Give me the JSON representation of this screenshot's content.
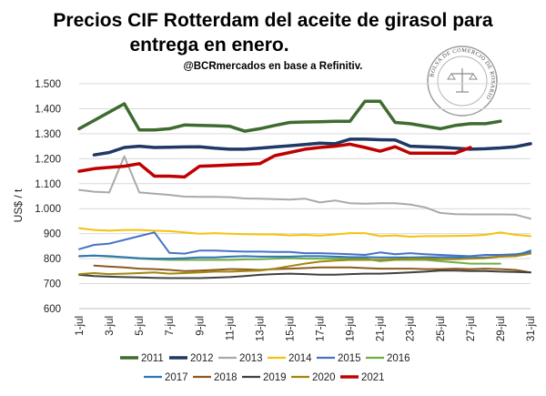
{
  "chart_data": {
    "type": "line",
    "title_line1": "Precios CIF Rotterdam del aceite de girasol para",
    "title_line2": "entrega en enero.",
    "subtitle": "@BCRmercados en base a Refinitiv.",
    "ylabel": "US$ / t",
    "xlabel": "",
    "ylim": [
      600,
      1500
    ],
    "yticks": [
      "600",
      "700",
      "800",
      "900",
      "1.000",
      "1.100",
      "1.200",
      "1.300",
      "1.400",
      "1.500"
    ],
    "ytick_values": [
      600,
      700,
      800,
      900,
      1000,
      1100,
      1200,
      1300,
      1400,
      1500
    ],
    "xticks": [
      "1-jul",
      "3-jul",
      "5-jul",
      "7-jul",
      "9-jul",
      "11-jul",
      "13-jul",
      "15-jul",
      "17-jul",
      "19-jul",
      "21-jul",
      "23-jul",
      "25-jul",
      "27-jul",
      "29-jul",
      "31-jul"
    ],
    "xtick_days": [
      1,
      3,
      5,
      7,
      9,
      11,
      13,
      15,
      17,
      19,
      21,
      23,
      25,
      27,
      29,
      31
    ],
    "xlim": [
      1,
      31
    ],
    "grid": true,
    "legend_position": "bottom",
    "seal_text": "BOLSA DE COMERCIO DE ROSARIO",
    "series": [
      {
        "name": "2011",
        "color": "#3e6b30",
        "width": 3.5,
        "x": [
          1,
          4,
          5,
          6,
          7,
          8,
          9,
          10,
          11,
          12,
          13,
          14,
          15,
          16,
          17,
          18,
          19,
          20,
          21,
          22,
          23,
          25,
          26,
          27,
          28,
          29
        ],
        "values": [
          1320,
          1420,
          1315,
          1315,
          1320,
          1335,
          1333,
          1332,
          1330,
          1310,
          1320,
          1333,
          1345,
          1347,
          1348,
          1350,
          1350,
          1430,
          1430,
          1345,
          1340,
          1320,
          1333,
          1340,
          1340,
          1350
        ]
      },
      {
        "name": "2012",
        "color": "#1f3864",
        "width": 3.5,
        "x": [
          2,
          3,
          4,
          5,
          6,
          7,
          8,
          9,
          10,
          11,
          12,
          13,
          14,
          15,
          16,
          17,
          18,
          19,
          20,
          21,
          22,
          23,
          24,
          25,
          26,
          27,
          28,
          29,
          30,
          31
        ],
        "values": [
          1215,
          1225,
          1245,
          1250,
          1245,
          1246,
          1247,
          1248,
          1242,
          1238,
          1238,
          1242,
          1247,
          1252,
          1257,
          1262,
          1260,
          1278,
          1278,
          1276,
          1275,
          1250,
          1248,
          1246,
          1242,
          1238,
          1240,
          1243,
          1248,
          1260
        ]
      },
      {
        "name": "2013",
        "color": "#a9a9a9",
        "width": 2,
        "x": [
          1,
          2,
          3,
          4,
          5,
          6,
          7,
          8,
          9,
          10,
          11,
          12,
          13,
          14,
          15,
          16,
          17,
          18,
          19,
          20,
          21,
          22,
          23,
          24,
          25,
          26,
          27,
          28,
          29,
          30,
          31
        ],
        "values": [
          1075,
          1068,
          1065,
          1210,
          1065,
          1060,
          1055,
          1048,
          1047,
          1047,
          1046,
          1041,
          1040,
          1038,
          1036,
          1040,
          1025,
          1033,
          1022,
          1020,
          1022,
          1022,
          1017,
          1005,
          983,
          978,
          977,
          977,
          977,
          976,
          960
        ]
      },
      {
        "name": "2014",
        "color": "#f4c20d",
        "width": 2,
        "x": [
          1,
          2,
          3,
          4,
          5,
          6,
          7,
          8,
          9,
          10,
          11,
          12,
          13,
          14,
          15,
          16,
          17,
          18,
          19,
          20,
          21,
          22,
          23,
          24,
          25,
          26,
          27,
          28,
          29,
          30,
          31
        ],
        "values": [
          922,
          915,
          912,
          915,
          915,
          912,
          910,
          905,
          900,
          902,
          900,
          898,
          897,
          897,
          893,
          895,
          892,
          897,
          902,
          902,
          890,
          893,
          888,
          890,
          890,
          891,
          892,
          895,
          905,
          895,
          890
        ]
      },
      {
        "name": "2015",
        "color": "#4472c4",
        "width": 2,
        "x": [
          1,
          2,
          3,
          4,
          5,
          6,
          7,
          8,
          9,
          10,
          11,
          12,
          13,
          14,
          15,
          16,
          17,
          18,
          19,
          20,
          21,
          22,
          23,
          24,
          25,
          26,
          27,
          28,
          29,
          30,
          31
        ],
        "values": [
          838,
          855,
          860,
          875,
          890,
          905,
          823,
          820,
          832,
          832,
          830,
          828,
          828,
          827,
          827,
          822,
          822,
          820,
          818,
          815,
          825,
          818,
          822,
          818,
          815,
          812,
          810,
          815,
          815,
          818,
          825
        ]
      },
      {
        "name": "2016",
        "color": "#70ad47",
        "width": 2,
        "x": [
          1,
          2,
          3,
          4,
          5,
          6,
          7,
          8,
          9,
          10,
          11,
          12,
          13,
          14,
          15,
          16,
          17,
          18,
          19,
          20,
          21,
          22,
          23,
          24,
          25,
          26,
          27,
          28,
          29
        ],
        "values": [
          810,
          812,
          808,
          805,
          800,
          797,
          795,
          795,
          795,
          795,
          795,
          797,
          798,
          800,
          802,
          800,
          800,
          800,
          800,
          800,
          790,
          795,
          795,
          795,
          790,
          785,
          780,
          780,
          780
        ]
      },
      {
        "name": "2017",
        "color": "#2e75b6",
        "width": 2,
        "x": [
          1,
          2,
          3,
          4,
          5,
          6,
          7,
          8,
          9,
          10,
          11,
          12,
          13,
          14,
          15,
          16,
          17,
          18,
          19,
          20,
          21,
          22,
          23,
          24,
          25,
          26,
          27,
          28,
          29,
          30,
          31
        ],
        "values": [
          810,
          812,
          810,
          806,
          802,
          800,
          800,
          802,
          805,
          805,
          808,
          810,
          808,
          808,
          808,
          810,
          810,
          808,
          806,
          806,
          805,
          805,
          805,
          806,
          806,
          805,
          803,
          805,
          808,
          812,
          832
        ]
      },
      {
        "name": "2018",
        "color": "#8c5a1e",
        "width": 2,
        "x": [
          2,
          3,
          4,
          5,
          6,
          7,
          8,
          9,
          10,
          11,
          12,
          13,
          14,
          15,
          16,
          17,
          18,
          19,
          20,
          21,
          22,
          23,
          24,
          25,
          26,
          27,
          28,
          29,
          30,
          31
        ],
        "values": [
          772,
          768,
          765,
          760,
          758,
          755,
          750,
          752,
          755,
          758,
          757,
          755,
          758,
          760,
          762,
          765,
          765,
          765,
          762,
          760,
          760,
          760,
          758,
          758,
          760,
          758,
          760,
          758,
          755,
          745
        ]
      },
      {
        "name": "2019",
        "color": "#404040",
        "width": 2,
        "x": [
          1,
          2,
          3,
          4,
          5,
          6,
          7,
          8,
          9,
          10,
          11,
          12,
          13,
          14,
          15,
          16,
          17,
          18,
          19,
          20,
          21,
          22,
          23,
          24,
          25,
          26,
          27,
          28,
          29,
          30,
          31
        ],
        "values": [
          735,
          730,
          728,
          726,
          725,
          723,
          722,
          722,
          722,
          724,
          726,
          730,
          735,
          738,
          740,
          738,
          736,
          736,
          738,
          740,
          740,
          742,
          745,
          748,
          752,
          752,
          750,
          750,
          748,
          747,
          745
        ]
      },
      {
        "name": "2020",
        "color": "#a0860d",
        "width": 2,
        "x": [
          1,
          2,
          3,
          4,
          5,
          6,
          7,
          8,
          9,
          10,
          11,
          12,
          13,
          14,
          15,
          16,
          17,
          18,
          19,
          20,
          21,
          22,
          23,
          24,
          25,
          26,
          27,
          28,
          29,
          30,
          31
        ],
        "values": [
          738,
          742,
          738,
          740,
          742,
          745,
          740,
          742,
          745,
          748,
          748,
          750,
          752,
          760,
          770,
          780,
          788,
          792,
          795,
          795,
          795,
          797,
          800,
          800,
          798,
          798,
          800,
          802,
          808,
          810,
          820
        ]
      },
      {
        "name": "2021",
        "color": "#c00000",
        "width": 3.5,
        "x": [
          1,
          2,
          3,
          4,
          5,
          6,
          7,
          8,
          9,
          10,
          11,
          12,
          13,
          14,
          15,
          16,
          17,
          18,
          19,
          20,
          21,
          22,
          23,
          24,
          25,
          26,
          27
        ],
        "values": [
          1150,
          1160,
          1165,
          1170,
          1180,
          1130,
          1130,
          1127,
          1170,
          1172,
          1175,
          1177,
          1180,
          1212,
          1225,
          1238,
          1245,
          1250,
          1258,
          1245,
          1230,
          1248,
          1222,
          1222,
          1222,
          1222,
          1245
        ]
      }
    ]
  }
}
